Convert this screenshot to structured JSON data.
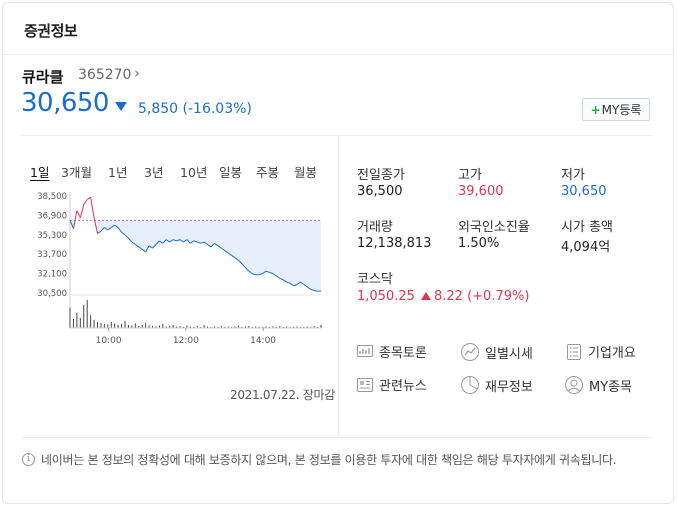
{
  "header": {
    "title": "증권정보"
  },
  "stock": {
    "name": "큐라클",
    "code": "365270",
    "code_arrow": "›",
    "price": "30,650",
    "change": "5,850 (-16.03%)",
    "my_button_plus": "+",
    "my_button_label": "MY등록"
  },
  "tabs": [
    "1일",
    "3개월",
    "1년",
    "3년",
    "10년",
    "일봉",
    "주봉",
    "월봉"
  ],
  "chart_data": {
    "type": "line",
    "y_ticks": [
      "38,500",
      "36,900",
      "35,300",
      "33,700",
      "32,100",
      "30,500"
    ],
    "x_ticks": [
      "10:00",
      "12:00",
      "14:00"
    ],
    "reference_price": 36500,
    "ylim": [
      30500,
      38500
    ],
    "series": [
      {
        "values": [
          36500,
          35800,
          37300,
          36700,
          37800,
          38200,
          38400,
          36700,
          35400,
          35600,
          35900,
          35700,
          35900,
          36100,
          35900,
          35500,
          35300,
          35000,
          34700,
          34500,
          34300,
          34100,
          33900,
          34400,
          34200,
          34500,
          34800,
          34600,
          34900,
          34700,
          34900,
          34800,
          34900,
          34700,
          34900,
          34600,
          34800,
          34700,
          34600,
          34700,
          34500,
          34300,
          34600,
          34400,
          34200,
          34000,
          33800,
          33600,
          33400,
          33200,
          32900,
          32600,
          32300,
          32100,
          32000,
          32000,
          32100,
          32300,
          32200,
          32100,
          31900,
          31700,
          31600,
          31400,
          31300,
          31100,
          31200,
          31400,
          31200,
          31000,
          30800,
          30700,
          30650,
          30650
        ]
      }
    ],
    "volume": [
      40,
      18,
      30,
      20,
      45,
      55,
      25,
      16,
      12,
      10,
      8,
      7,
      12,
      9,
      6,
      8,
      14,
      6,
      5,
      9,
      4,
      6,
      10,
      5,
      4,
      3,
      5,
      8,
      3,
      4,
      6,
      3,
      4,
      2,
      5,
      3,
      2,
      4,
      2,
      6,
      3,
      2,
      3,
      2,
      4,
      2,
      3,
      2,
      3,
      5,
      2,
      3,
      4,
      2,
      3,
      2,
      2,
      3,
      2,
      3,
      2,
      4,
      2,
      3,
      2,
      2,
      3,
      2,
      2,
      3,
      2,
      4,
      2,
      6
    ],
    "date_label": "2021.07.22. 장마감"
  },
  "stats": [
    {
      "label": "전일종가",
      "value": "36,500",
      "tone": "normal"
    },
    {
      "label": "고가",
      "value": "39,600",
      "tone": "red"
    },
    {
      "label": "저가",
      "value": "30,650",
      "tone": "blue"
    },
    {
      "label": "거래량",
      "value": "12,138,813",
      "tone": "normal"
    },
    {
      "label": "외국인소진율",
      "value": "1.50%",
      "tone": "normal"
    },
    {
      "label": "시가 총액",
      "value": "4,094억",
      "tone": "normal"
    }
  ],
  "kosdaq": {
    "label": "코스닥",
    "value": "1,050.25",
    "change": "8.22 (+0.79%)"
  },
  "links": [
    {
      "label": "종목토론",
      "icon": "discussion-icon"
    },
    {
      "label": "일별시세",
      "icon": "trend-icon"
    },
    {
      "label": "기업개요",
      "icon": "document-icon"
    },
    {
      "label": "관련뉴스",
      "icon": "news-icon"
    },
    {
      "label": "재무정보",
      "icon": "pie-chart-icon"
    },
    {
      "label": "MY종목",
      "icon": "user-icon"
    }
  ],
  "notice": {
    "icon": "i",
    "text": "네이버는 본 정보의 정확성에 대해 보증하지 않으며, 본 정보를 이용한 투자에 대한 책임은 해당 투자자에게 귀속됩니다."
  },
  "colors": {
    "up": "#e0364b",
    "down": "#1a6ccd",
    "fill": "#e6eefb"
  }
}
